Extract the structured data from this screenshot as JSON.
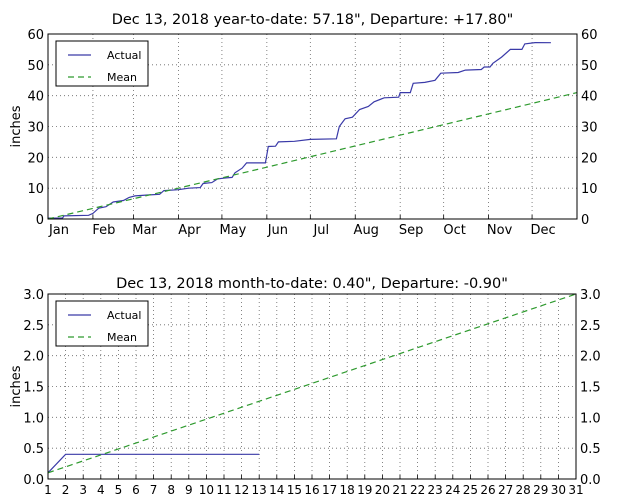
{
  "chart_data": [
    {
      "type": "line",
      "title": "Dec 13, 2018 year-to-date: 57.18\",    Departure: +17.80\"",
      "xlabel": "",
      "ylabel": "inches",
      "xlim": [
        0,
        365
      ],
      "ylim": [
        0,
        60
      ],
      "grid": true,
      "legend": "top-left",
      "x_unit": "day of year",
      "x_ticks": [
        0,
        31,
        59,
        90,
        120,
        151,
        181,
        212,
        243,
        273,
        304,
        334
      ],
      "x_tick_labels": [
        "Jan",
        "Feb",
        "Mar",
        "Apr",
        "May",
        "Jun",
        "Jul",
        "Aug",
        "Sep",
        "Oct",
        "Nov",
        "Dec"
      ],
      "y_ticks": [
        0,
        10,
        20,
        30,
        40,
        50,
        60
      ],
      "y_tick_labels": [
        "0",
        "10",
        "20",
        "30",
        "40",
        "50",
        "60"
      ],
      "series": [
        {
          "name": "Actual",
          "color": "#3a3aa8",
          "style": "solid",
          "x": [
            0,
            10,
            11,
            28,
            31,
            35,
            40,
            45,
            52,
            56,
            60,
            70,
            77,
            80,
            90,
            97,
            105,
            107,
            113,
            117,
            122,
            127,
            129,
            134,
            137,
            150,
            152,
            157,
            159,
            170,
            181,
            199,
            201,
            205,
            210,
            215,
            221,
            225,
            232,
            242,
            243,
            250,
            252,
            260,
            267,
            271,
            283,
            288,
            299,
            301,
            305,
            307,
            313,
            319,
            327,
            329,
            336,
            347
          ],
          "y": [
            0.3,
            0.3,
            1.0,
            1.2,
            1.8,
            3.5,
            4.0,
            5.5,
            6.0,
            7.0,
            7.5,
            7.8,
            8.0,
            9.2,
            9.5,
            10.0,
            10.2,
            11.5,
            11.8,
            13.0,
            13.3,
            13.5,
            15.0,
            16.5,
            18.2,
            18.2,
            23.5,
            23.6,
            25.0,
            25.2,
            25.8,
            26.0,
            30.0,
            32.5,
            33.0,
            35.5,
            36.5,
            38.0,
            39.3,
            39.5,
            41.0,
            41.0,
            44.0,
            44.3,
            45.0,
            47.3,
            47.5,
            48.3,
            48.5,
            49.3,
            49.3,
            50.5,
            52.5,
            55.0,
            55.0,
            56.8,
            57.2,
            57.18
          ]
        },
        {
          "name": "Mean",
          "color": "#2e9a2e",
          "style": "dashed",
          "x": [
            0,
            151,
            365
          ],
          "y": [
            0,
            16.8,
            41.0
          ]
        }
      ]
    },
    {
      "type": "line",
      "title": "Dec 13, 2018 month-to-date: 0.40\",    Departure: -0.90\"",
      "xlabel": "",
      "ylabel": "inches",
      "xlim": [
        1,
        31
      ],
      "ylim": [
        0,
        3.0
      ],
      "grid": true,
      "legend": "top-left",
      "x_ticks": [
        1,
        2,
        3,
        4,
        5,
        6,
        7,
        8,
        9,
        10,
        11,
        12,
        13,
        14,
        15,
        16,
        17,
        18,
        19,
        20,
        21,
        22,
        23,
        24,
        25,
        26,
        27,
        28,
        29,
        30,
        31
      ],
      "x_tick_labels": [
        "1",
        "2",
        "3",
        "4",
        "5",
        "6",
        "7",
        "8",
        "9",
        "10",
        "11",
        "12",
        "13",
        "14",
        "15",
        "16",
        "17",
        "18",
        "19",
        "20",
        "21",
        "22",
        "23",
        "24",
        "25",
        "26",
        "27",
        "28",
        "29",
        "30",
        "31"
      ],
      "y_ticks": [
        0,
        0.5,
        1.0,
        1.5,
        2.0,
        2.5,
        3.0
      ],
      "y_tick_labels": [
        "0.0",
        "0.5",
        "1.0",
        "1.5",
        "2.0",
        "2.5",
        "3.0"
      ],
      "series": [
        {
          "name": "Actual",
          "color": "#3a3aa8",
          "style": "solid",
          "x": [
            1,
            2,
            13
          ],
          "y": [
            0.1,
            0.4,
            0.4
          ]
        },
        {
          "name": "Mean",
          "color": "#2e9a2e",
          "style": "dashed",
          "x": [
            1,
            31
          ],
          "y": [
            0.1,
            3.0
          ]
        }
      ]
    }
  ]
}
